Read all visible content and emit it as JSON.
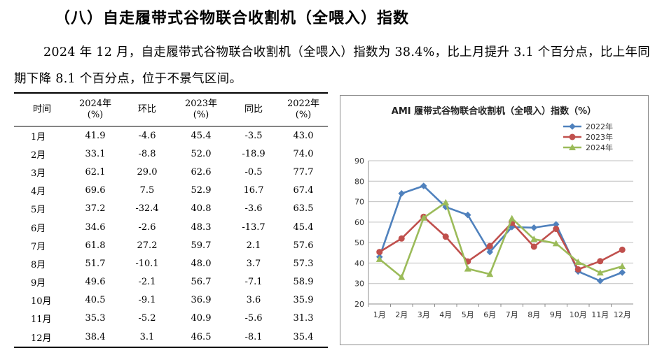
{
  "heading": "（八）自走履带式谷物联合收割机（全喂入）指数",
  "paragraph": "2024 年 12 月，自走履带式谷物联合收割机（全喂入）指数为 38.4%，比上月提升 3.1 个百分点，比上年同期下降 8.1 个百分点，位于不景气区间。",
  "table": {
    "headers": [
      "时间",
      "2024年\n(%)",
      "环比",
      "2023年\n(%)",
      "同比",
      "2022年\n(%)"
    ],
    "rows": [
      [
        "1月",
        "41.9",
        "-4.6",
        "45.4",
        "-3.5",
        "43.0"
      ],
      [
        "2月",
        "33.1",
        "-8.8",
        "52.0",
        "-18.9",
        "74.0"
      ],
      [
        "3月",
        "62.1",
        "29.0",
        "62.6",
        "-0.5",
        "77.7"
      ],
      [
        "4月",
        "69.6",
        "7.5",
        "52.9",
        "16.7",
        "67.4"
      ],
      [
        "5月",
        "37.2",
        "-32.4",
        "40.8",
        "-3.6",
        "63.5"
      ],
      [
        "6月",
        "34.6",
        "-2.6",
        "48.3",
        "-13.7",
        "45.4"
      ],
      [
        "7月",
        "61.8",
        "27.2",
        "59.7",
        "2.1",
        "57.6"
      ],
      [
        "8月",
        "51.7",
        "-10.1",
        "48.0",
        "3.7",
        "57.3"
      ],
      [
        "9月",
        "49.6",
        "-2.1",
        "56.7",
        "-7.1",
        "58.9"
      ],
      [
        "10月",
        "40.5",
        "-9.1",
        "36.9",
        "3.6",
        "35.9"
      ],
      [
        "11月",
        "35.3",
        "-5.2",
        "40.9",
        "-5.6",
        "31.3"
      ],
      [
        "12月",
        "38.4",
        "3.1",
        "46.5",
        "-8.1",
        "35.4"
      ]
    ]
  },
  "chart_data": {
    "type": "line",
    "title": "AMI 履带式谷物联合收割机（全喂入）指数（%）",
    "categories": [
      "1月",
      "2月",
      "3月",
      "4月",
      "5月",
      "6月",
      "7月",
      "8月",
      "9月",
      "10月",
      "11月",
      "12月"
    ],
    "series": [
      {
        "name": "2022年",
        "color": "#4f81bd",
        "marker": "diamond",
        "values": [
          43.0,
          74.0,
          77.7,
          67.4,
          63.5,
          45.4,
          57.6,
          57.3,
          58.9,
          35.9,
          31.3,
          35.4
        ]
      },
      {
        "name": "2023年",
        "color": "#c0504d",
        "marker": "circle",
        "values": [
          45.4,
          52.0,
          62.6,
          52.9,
          40.8,
          48.3,
          59.7,
          48.0,
          56.7,
          36.9,
          40.9,
          46.5
        ]
      },
      {
        "name": "2024年",
        "color": "#9bbb59",
        "marker": "triangle",
        "values": [
          41.9,
          33.1,
          62.1,
          69.6,
          37.2,
          34.6,
          61.8,
          51.7,
          49.6,
          40.5,
          35.3,
          38.4
        ]
      }
    ],
    "yticks": [
      "20",
      "30",
      "40",
      "50",
      "60",
      "70",
      "80",
      "90"
    ],
    "ylim": [
      20,
      90
    ],
    "grid": true,
    "legend": "top-right"
  }
}
